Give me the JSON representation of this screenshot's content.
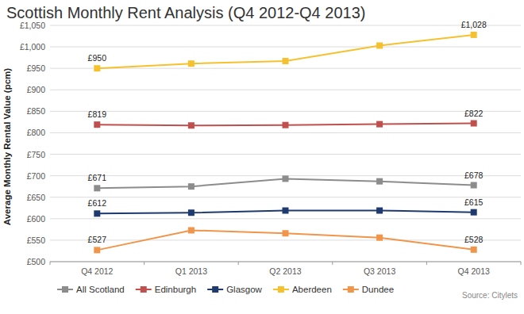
{
  "chart_data": {
    "type": "line",
    "title": "Scottish Monthly Rent Analysis (Q4 2012-Q4 2013)",
    "y_label": "Average Monthly Rental Value (pcm)",
    "source": "Source: Citylets",
    "categories": [
      "Q4 2012",
      "Q1 2013",
      "Q2 2013",
      "Q3 2013",
      "Q4 2013"
    ],
    "series": [
      {
        "name": "All Scotland",
        "color": "#8c8c8c",
        "marker": "square",
        "values": [
          671,
          675,
          693,
          687,
          678
        ],
        "value_labels": [
          "£671",
          null,
          null,
          null,
          "£678"
        ]
      },
      {
        "name": "Edinburgh",
        "color": "#c0504d",
        "marker": "square",
        "values": [
          819,
          817,
          818,
          820,
          822
        ],
        "value_labels": [
          "£819",
          null,
          null,
          null,
          "£822"
        ]
      },
      {
        "name": "Glasgow",
        "color": "#1f3a6e",
        "marker": "square",
        "values": [
          612,
          614,
          619,
          619,
          615
        ],
        "value_labels": [
          "£612",
          null,
          null,
          null,
          "£615"
        ]
      },
      {
        "name": "Aberdeen",
        "color": "#f5c12e",
        "marker": "square",
        "values": [
          950,
          961,
          967,
          1003,
          1028
        ],
        "value_labels": [
          "£950",
          null,
          null,
          null,
          "£1,028"
        ]
      },
      {
        "name": "Dundee",
        "color": "#f0954a",
        "marker": "square",
        "values": [
          527,
          573,
          566,
          556,
          528
        ],
        "value_labels": [
          "£527",
          null,
          null,
          null,
          "£528"
        ]
      }
    ],
    "ylim": [
      500,
      1050
    ],
    "yticks": [
      {
        "value": 500,
        "label": "£500"
      },
      {
        "value": 550,
        "label": "£550"
      },
      {
        "value": 600,
        "label": "£600"
      },
      {
        "value": 650,
        "label": "£650"
      },
      {
        "value": 700,
        "label": "£700"
      },
      {
        "value": 750,
        "label": "£750"
      },
      {
        "value": 800,
        "label": "£800"
      },
      {
        "value": 850,
        "label": "£850"
      },
      {
        "value": 900,
        "label": "£900"
      },
      {
        "value": 950,
        "label": "£950"
      },
      {
        "value": 1000,
        "label": "£1,000"
      },
      {
        "value": 1050,
        "label": "£1,050"
      }
    ],
    "grid": true,
    "legend": "bottom"
  }
}
